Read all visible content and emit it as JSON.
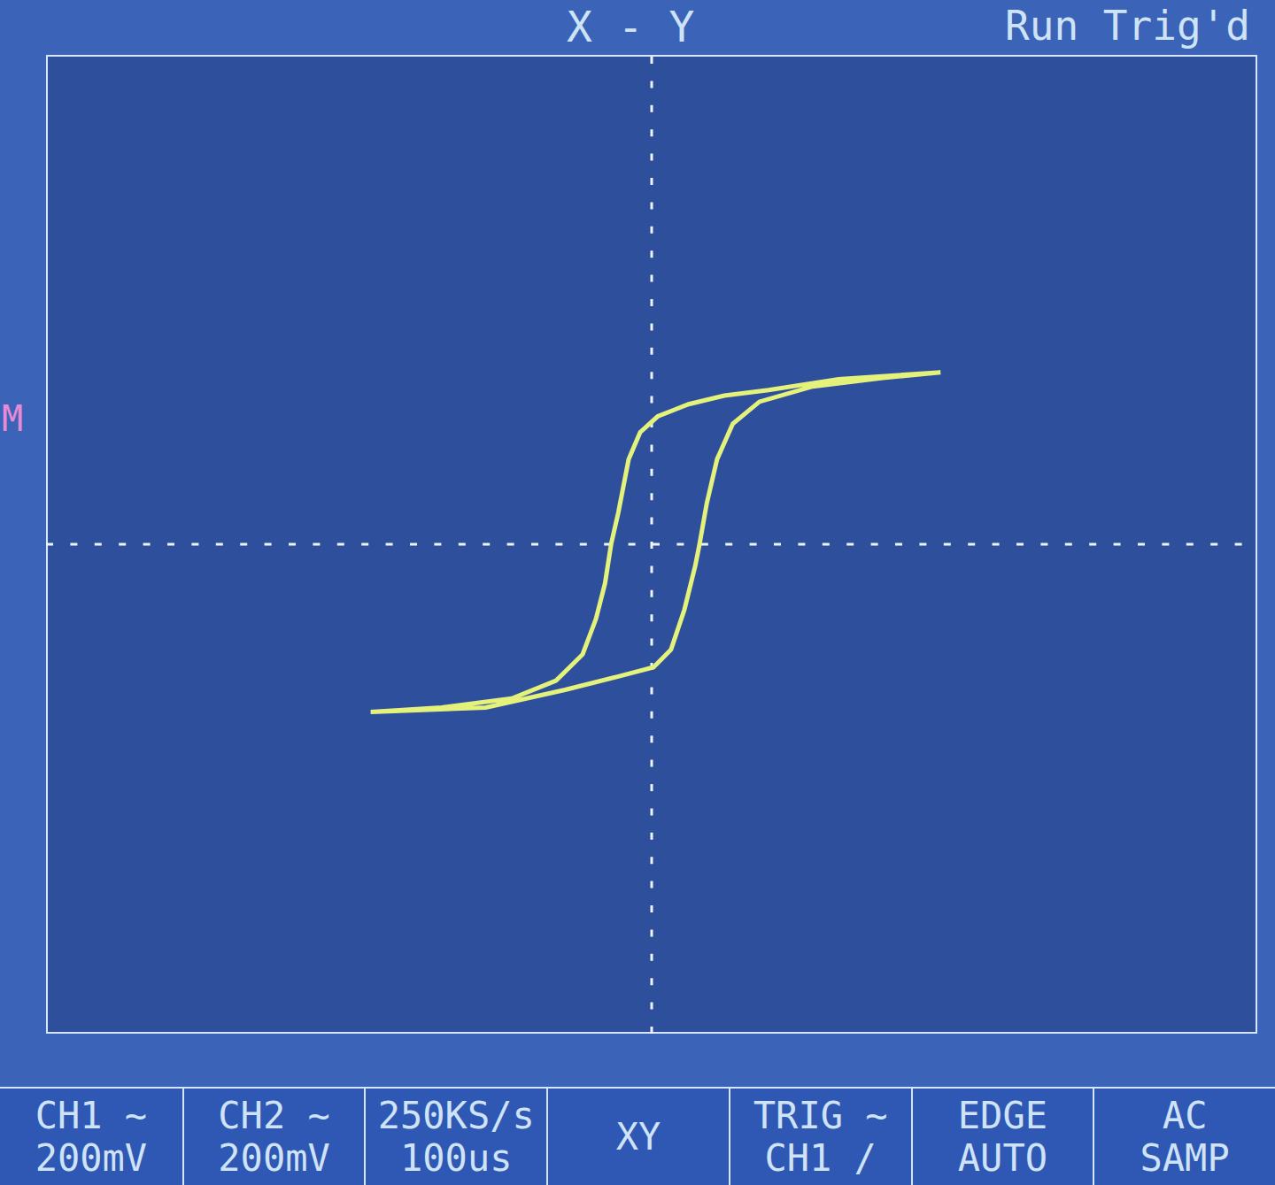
{
  "chart_data": {
    "type": "line",
    "title": "X - Y",
    "annotations": {
      "status": "Run Trig'd",
      "marker": "M",
      "menu": [
        [
          "CH1 ~",
          "200mV"
        ],
        [
          "CH2 ~",
          "200mV"
        ],
        [
          "250KS/s",
          "100us"
        ],
        [
          "XY"
        ],
        [
          "TRIG ~",
          "CH1 /"
        ],
        [
          "EDGE",
          "AUTO"
        ],
        [
          "AC",
          "SAMP"
        ]
      ]
    },
    "x": [
      477,
      309,
      193,
      120,
      61,
      10,
      -19,
      -38,
      -55,
      -67,
      -77,
      -92,
      -114,
      -158,
      -231,
      -347,
      -464,
      -274,
      -143,
      -55,
      3,
      32,
      54,
      72,
      79,
      91,
      108,
      134,
      178,
      266,
      382,
      477
    ],
    "values": [
      281,
      270,
      252,
      243,
      229,
      209,
      183,
      139,
      52,
      0,
      -64,
      -122,
      -180,
      -223,
      -252,
      -267,
      -274,
      -267,
      -238,
      -216,
      -201,
      -172,
      -107,
      -35,
      0,
      67,
      139,
      197,
      233,
      258,
      272,
      281
    ],
    "color": "#e4f27c",
    "xlim": [
      -1000,
      1000
    ],
    "xticks": [
      -1000,
      -800,
      -600,
      -400,
      -200,
      0,
      200,
      400,
      600,
      800,
      1000
    ],
    "ylim": [
      -800,
      800
    ],
    "yticks": [
      -800,
      -600,
      -400,
      -200,
      0,
      200,
      400,
      600,
      800
    ],
    "grid": true,
    "tick_labels": false
  }
}
